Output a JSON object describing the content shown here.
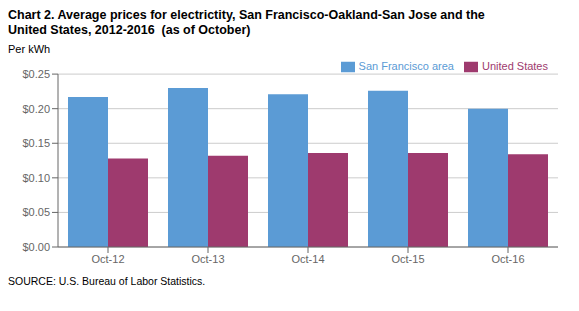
{
  "chart_data": {
    "type": "bar",
    "title": "Chart 2. Average prices for electrictity, San Francisco-Oakland-San Jose and the\nUnited States, 2012-2016  (as of October)",
    "y_label": "Per kWh",
    "annotations": [
      "SOURCE: U.S. Bureau of Labor Statistics."
    ],
    "categories": [
      "Oct-12",
      "Oct-13",
      "Oct-14",
      "Oct-15",
      "Oct-16"
    ],
    "series": [
      {
        "name": "San Francisco area",
        "color": "#5B9BD5",
        "values": [
          0.217,
          0.23,
          0.221,
          0.226,
          0.2
        ]
      },
      {
        "name": "United States",
        "color": "#9E3A6E",
        "values": [
          0.128,
          0.132,
          0.136,
          0.136,
          0.134
        ]
      }
    ],
    "ylim": [
      0.0,
      0.25
    ],
    "yticks": [
      {
        "value": 0.0,
        "label": "$0.00"
      },
      {
        "value": 0.05,
        "label": "$0.05"
      },
      {
        "value": 0.1,
        "label": "$0.10"
      },
      {
        "value": 0.15,
        "label": "$0.15"
      },
      {
        "value": 0.2,
        "label": "$0.20"
      },
      {
        "value": 0.25,
        "label": "$0.25"
      }
    ],
    "grid": true,
    "legend": "upper right"
  }
}
